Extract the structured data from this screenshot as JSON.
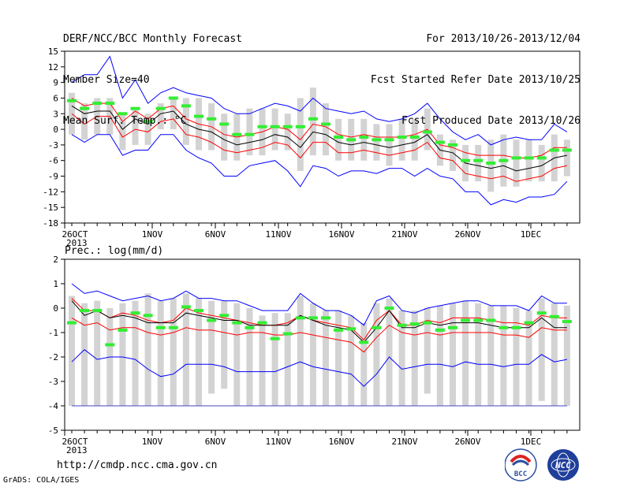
{
  "header": {
    "title": "DERF/NCC/BCC Monthly Forecast",
    "member_size": "Member Size=40",
    "variable": "Mean Surf. Temp.: °C",
    "period": "For 2013/10/26-2013/12/04",
    "refer_date": "Fcst Started Refer Date 2013/10/25",
    "produced_date": "Fcst Produced Date 2013/10/26"
  },
  "footer": {
    "url": "http://cmdp.ncc.cma.gov.cn",
    "grads": "GrADS: COLA/IGES",
    "logo_left_text": "BCC",
    "logo_right_text": "NCC"
  },
  "colors": {
    "minmax": "#0000ff",
    "spread": "#ff0000",
    "mean": "#000000",
    "range_bar": "#d3d3d3",
    "climatology": "#33ee33",
    "precip_floor": "#4444cc"
  },
  "chart_data": [
    {
      "type": "line",
      "title": "Mean Surf. Temp.: °C",
      "xlabel": "",
      "ylabel": "",
      "x_ticks": [
        "26OCT",
        "1NOV",
        "6NOV",
        "11NOV",
        "16NOV",
        "21NOV",
        "26NOV",
        "1DEC"
      ],
      "x_tick_year": "2013",
      "x": [
        "10/26",
        "10/27",
        "10/28",
        "10/29",
        "10/30",
        "10/31",
        "11/01",
        "11/02",
        "11/03",
        "11/04",
        "11/05",
        "11/06",
        "11/07",
        "11/08",
        "11/09",
        "11/10",
        "11/11",
        "11/12",
        "11/13",
        "11/14",
        "11/15",
        "11/16",
        "11/17",
        "11/18",
        "11/19",
        "11/20",
        "11/21",
        "11/22",
        "11/23",
        "11/24",
        "11/25",
        "11/26",
        "11/27",
        "11/28",
        "11/29",
        "11/30",
        "12/01",
        "12/02",
        "12/03",
        "12/04"
      ],
      "ylim": [
        -18,
        15
      ],
      "yticks": [
        -18,
        -15,
        -12,
        -9,
        -6,
        -3,
        0,
        3,
        6,
        9,
        12,
        15
      ],
      "grid": false,
      "series": [
        {
          "role": "max",
          "values": [
            9,
            10.5,
            10.5,
            14,
            6,
            9.5,
            5,
            7,
            8,
            7,
            6.5,
            6,
            4,
            3,
            3,
            4,
            5,
            4.5,
            3.5,
            6,
            4,
            3.5,
            3,
            3.5,
            2,
            1.5,
            2,
            3,
            5,
            2,
            -0.5,
            -2,
            -1,
            -3,
            -2,
            -1.5,
            -2,
            -2,
            1,
            -0.5
          ]
        },
        {
          "role": "upper",
          "values": [
            6,
            4.5,
            5,
            5,
            1.5,
            3.5,
            2,
            4,
            4.5,
            2,
            1,
            0.5,
            -1,
            -1.5,
            -1,
            -0.5,
            0.5,
            0,
            -2,
            1,
            0.5,
            -1,
            -1.5,
            -1,
            -1.5,
            -1.5,
            -1.5,
            -1,
            0,
            -3,
            -3.5,
            -4.5,
            -5,
            -5,
            -5,
            -5.5,
            -5.5,
            -5,
            -3.5,
            -3.5
          ]
        },
        {
          "role": "mean",
          "values": [
            4.5,
            3,
            3.5,
            3.5,
            0,
            2,
            1,
            3,
            3.5,
            1,
            0,
            -0.5,
            -2,
            -3,
            -2.5,
            -2,
            -1,
            -1.5,
            -3.5,
            -0.5,
            -1,
            -2.5,
            -3,
            -2.5,
            -3,
            -3.5,
            -3,
            -2.5,
            -1,
            -4,
            -4.5,
            -6.5,
            -7,
            -7.5,
            -7,
            -8,
            -7.5,
            -7,
            -5.5,
            -5
          ]
        },
        {
          "role": "lower",
          "values": [
            3,
            1,
            2.5,
            2.5,
            -1.5,
            0,
            -0.5,
            1.5,
            2,
            -1,
            -1.5,
            -2.5,
            -4,
            -4.5,
            -4,
            -3.5,
            -2.5,
            -3,
            -5.5,
            -2.5,
            -2.5,
            -4.5,
            -4.5,
            -4,
            -4.5,
            -5,
            -4.5,
            -4,
            -2.5,
            -5.5,
            -6,
            -8.5,
            -9,
            -9.5,
            -9,
            -10,
            -9.5,
            -9,
            -7.5,
            -7
          ]
        },
        {
          "role": "min",
          "values": [
            -1,
            -2.5,
            -1,
            -1,
            -5,
            -4,
            -4,
            -1,
            -1,
            -4,
            -5.5,
            -6.5,
            -9,
            -9,
            -7,
            -6.5,
            -6,
            -8,
            -11,
            -7,
            -7.5,
            -9,
            -8,
            -8,
            -8.5,
            -7.5,
            -7.5,
            -9,
            -7.5,
            -9,
            -9.5,
            -12,
            -12,
            -14.5,
            -13.5,
            -14,
            -13,
            -13,
            -12.5,
            -10
          ]
        },
        {
          "role": "range_bar",
          "low": [
            -1,
            -2,
            -1,
            -1,
            -4,
            -3,
            -3,
            0,
            0,
            -3,
            -4,
            -4,
            -6,
            -6,
            -5,
            -5,
            -4,
            -4,
            -8,
            -5,
            -5,
            -6,
            -6,
            -6,
            -6,
            -7,
            -6,
            -6,
            -4,
            -7,
            -8,
            -10,
            -10,
            -12,
            -11,
            -11,
            -10,
            -10,
            -10,
            -9
          ],
          "high": [
            7,
            5,
            6,
            6,
            3,
            4,
            3,
            5,
            6,
            6,
            6,
            5,
            3,
            3,
            4,
            4,
            4,
            3,
            6,
            8,
            5,
            2,
            2,
            2,
            1,
            1,
            2,
            2,
            4,
            -1,
            -2,
            -3,
            -3,
            -2,
            -1,
            -2,
            -2,
            -3,
            -1,
            -2
          ]
        },
        {
          "role": "climatology",
          "values": [
            5.5,
            4,
            5,
            5,
            3,
            4,
            1.5,
            4,
            6,
            4.5,
            2.5,
            2,
            1,
            -1,
            -1,
            0.5,
            0.5,
            0.5,
            0.5,
            2,
            1,
            -1.5,
            -2,
            -1.5,
            -2,
            -2,
            -1.5,
            -1.5,
            -0.5,
            -2.5,
            -3,
            -6,
            -6,
            -6.5,
            -6,
            -5.5,
            -5.5,
            -5.5,
            -4,
            -4
          ]
        }
      ]
    },
    {
      "type": "line",
      "title": "Prec.: log(mm/d)",
      "xlabel": "",
      "ylabel": "",
      "x_ticks": [
        "26OCT",
        "1NOV",
        "6NOV",
        "11NOV",
        "16NOV",
        "21NOV",
        "26NOV",
        "1DEC"
      ],
      "x_tick_year": "2013",
      "x": [
        "10/26",
        "10/27",
        "10/28",
        "10/29",
        "10/30",
        "10/31",
        "11/01",
        "11/02",
        "11/03",
        "11/04",
        "11/05",
        "11/06",
        "11/07",
        "11/08",
        "11/09",
        "11/10",
        "11/11",
        "11/12",
        "11/13",
        "11/14",
        "11/15",
        "11/16",
        "11/17",
        "11/18",
        "11/19",
        "11/20",
        "11/21",
        "11/22",
        "11/23",
        "11/24",
        "11/25",
        "11/26",
        "11/27",
        "11/28",
        "11/29",
        "11/30",
        "12/01",
        "12/02",
        "12/03",
        "12/04"
      ],
      "ylim": [
        -5,
        2
      ],
      "yticks": [
        -5,
        -4,
        -3,
        -2,
        -1,
        0,
        1,
        2
      ],
      "grid": false,
      "series": [
        {
          "role": "max",
          "values": [
            1,
            0.6,
            0.7,
            0.5,
            0.3,
            0.4,
            0.5,
            0.3,
            0.4,
            0.7,
            0.4,
            0.4,
            0.3,
            0.3,
            0.1,
            -0.1,
            -0.1,
            -0.1,
            0.6,
            0.2,
            -0.1,
            -0.1,
            -0.3,
            -0.7,
            0.3,
            0.5,
            -0.1,
            -0.2,
            0,
            0.1,
            0.2,
            0.3,
            0.3,
            0.1,
            0.1,
            0.1,
            -0.1,
            0.5,
            0.2,
            0.2
          ]
        },
        {
          "role": "upper",
          "values": [
            0.4,
            -0.1,
            -0.1,
            -0.4,
            -0.2,
            -0.3,
            -0.5,
            -0.6,
            -0.5,
            0,
            -0.2,
            -0.3,
            -0.4,
            -0.5,
            -0.6,
            -0.7,
            -0.7,
            -0.6,
            -0.3,
            -0.5,
            -0.6,
            -0.7,
            -0.8,
            -1.3,
            -0.5,
            -0.1,
            -0.7,
            -0.7,
            -0.5,
            -0.6,
            -0.4,
            -0.4,
            -0.4,
            -0.5,
            -0.6,
            -0.6,
            -0.7,
            -0.3,
            -0.4,
            -0.4
          ]
        },
        {
          "role": "mean",
          "values": [
            0.3,
            -0.3,
            -0.1,
            -0.4,
            -0.3,
            -0.4,
            -0.6,
            -0.6,
            -0.6,
            -0.2,
            -0.3,
            -0.4,
            -0.5,
            -0.5,
            -0.7,
            -0.7,
            -0.7,
            -0.7,
            -0.3,
            -0.5,
            -0.7,
            -0.8,
            -0.9,
            -1.4,
            -0.8,
            -0.1,
            -0.8,
            -0.8,
            -0.6,
            -0.7,
            -0.6,
            -0.6,
            -0.6,
            -0.7,
            -0.8,
            -0.8,
            -0.8,
            -0.4,
            -0.8,
            -0.8
          ]
        },
        {
          "role": "lower",
          "values": [
            -0.4,
            -0.7,
            -0.6,
            -0.9,
            -0.8,
            -0.8,
            -1.0,
            -1.1,
            -1.0,
            -0.8,
            -0.9,
            -0.9,
            -1.0,
            -1.1,
            -1.0,
            -1.0,
            -1.1,
            -1.1,
            -1.0,
            -1.1,
            -1.2,
            -1.3,
            -1.4,
            -1.8,
            -1.2,
            -0.7,
            -1.0,
            -1.1,
            -1.0,
            -1.1,
            -1.0,
            -1.0,
            -1.0,
            -1.0,
            -1.1,
            -1.1,
            -1.2,
            -0.8,
            -0.9,
            -0.9
          ]
        },
        {
          "role": "min",
          "values": [
            -2.2,
            -1.7,
            -2.1,
            -2.0,
            -2.0,
            -2.1,
            -2.5,
            -2.8,
            -2.7,
            -2.3,
            -2.3,
            -2.3,
            -2.4,
            -2.6,
            -2.6,
            -2.6,
            -2.6,
            -2.4,
            -2.2,
            -2.4,
            -2.5,
            -2.6,
            -2.7,
            -3.2,
            -2.7,
            -2.0,
            -2.5,
            -2.4,
            -2.3,
            -2.3,
            -2.4,
            -2.2,
            -2.3,
            -2.3,
            -2.4,
            -2.3,
            -2.3,
            -1.9,
            -2.2,
            -2.1
          ]
        },
        {
          "role": "range_bar",
          "low": [
            -4,
            -4,
            -4,
            -4,
            -4,
            -4,
            -4,
            -4,
            -4,
            -4,
            -4,
            -3.5,
            -3.3,
            -4,
            -4,
            -4,
            -4,
            -4,
            -4,
            -4,
            -4,
            -4,
            -4,
            -4,
            -4,
            -4,
            -4,
            -4,
            -3.5,
            -4,
            -4,
            -4,
            -4,
            -4,
            -4,
            -4,
            -4,
            -3.8,
            -4,
            -4
          ],
          "high": [
            0.5,
            0.2,
            0.3,
            0,
            0.2,
            0.3,
            0.6,
            0.3,
            0.4,
            0.6,
            0.4,
            0.3,
            0.3,
            0.2,
            0,
            -0.3,
            -0.2,
            -0.2,
            0.5,
            0.2,
            -0.1,
            -0.1,
            -0.3,
            -0.6,
            0.2,
            0.4,
            -0.1,
            -0.1,
            0,
            0.1,
            0.2,
            0.3,
            0.2,
            0.1,
            0.1,
            0,
            -0.1,
            0.4,
            0.2,
            0.1
          ]
        },
        {
          "role": "climatology",
          "values": [
            -0.6,
            -0.1,
            -0.1,
            -1.5,
            -0.9,
            -0.2,
            -0.3,
            -0.8,
            -0.8,
            0.05,
            -0.1,
            -0.5,
            -0.3,
            -0.6,
            -0.8,
            -0.6,
            -1.25,
            -1.05,
            -0.4,
            -0.4,
            -0.4,
            -0.9,
            -0.85,
            -1.4,
            -0.8,
            0,
            -0.7,
            -0.65,
            -0.6,
            -0.9,
            -0.8,
            -0.5,
            -0.5,
            -0.5,
            -0.8,
            -0.8,
            -0.6,
            -0.2,
            -0.35,
            -0.55
          ]
        },
        {
          "role": "floor",
          "values": [
            -4,
            -4,
            -4,
            -4,
            -4,
            -4,
            -4,
            -4,
            -4,
            -4,
            -4,
            -4,
            -4,
            -4,
            -4,
            -4,
            -4,
            -4,
            -4,
            -4,
            -4,
            -4,
            -4,
            -4,
            -4,
            -4,
            -4,
            -4,
            -4,
            -4,
            -4,
            -4,
            -4,
            -4,
            -4,
            -4,
            -4,
            -4,
            -4,
            -4
          ]
        }
      ]
    }
  ]
}
